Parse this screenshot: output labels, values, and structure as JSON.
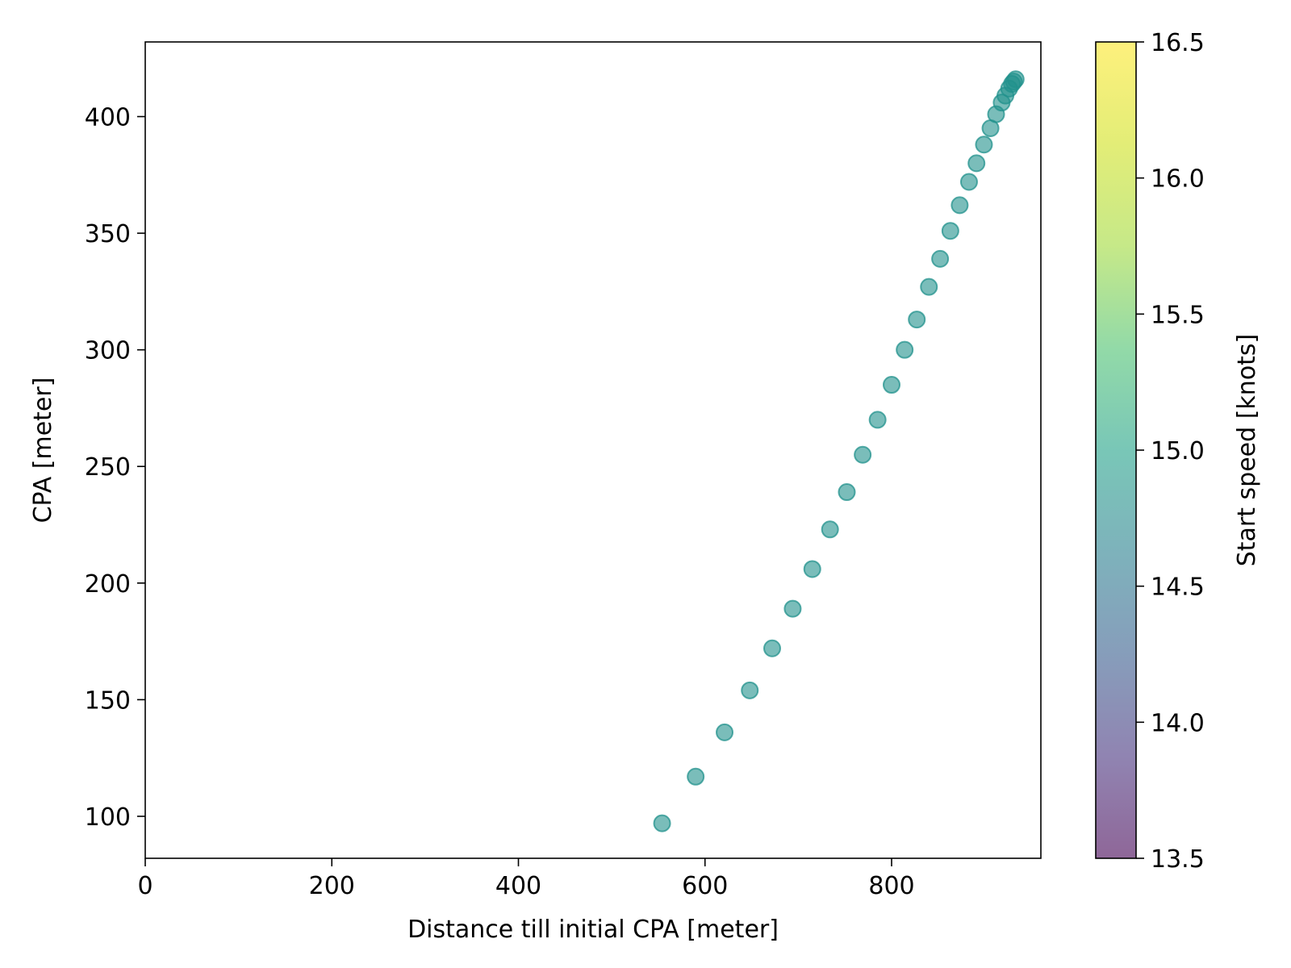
{
  "chart_data": {
    "type": "scatter",
    "xlabel": "Distance till initial CPA [meter]",
    "ylabel": "CPA [meter]",
    "xlim": [
      0,
      960
    ],
    "ylim": [
      82,
      432
    ],
    "x_ticks": [
      0,
      200,
      400,
      600,
      800
    ],
    "y_ticks": [
      100,
      150,
      200,
      250,
      300,
      350,
      400
    ],
    "grid": false,
    "colorbar": {
      "label": "Start speed [knots]",
      "range": [
        13.5,
        16.5
      ],
      "ticks": [
        13.5,
        14.0,
        14.5,
        15.0,
        15.5,
        16.0,
        16.5
      ],
      "tick_labels": [
        "13.5",
        "14.0",
        "14.5",
        "15.0",
        "15.5",
        "16.0",
        "16.5"
      ],
      "colormap": "viridis",
      "alpha": 0.6
    },
    "series": [
      {
        "color": "#21918c",
        "alpha": 0.6,
        "points": [
          {
            "x": 554,
            "y": 97,
            "speed": 15.0
          },
          {
            "x": 590,
            "y": 117,
            "speed": 15.0
          },
          {
            "x": 621,
            "y": 136,
            "speed": 15.0
          },
          {
            "x": 648,
            "y": 154,
            "speed": 15.0
          },
          {
            "x": 672,
            "y": 172,
            "speed": 15.0
          },
          {
            "x": 694,
            "y": 189,
            "speed": 15.0
          },
          {
            "x": 715,
            "y": 206,
            "speed": 15.0
          },
          {
            "x": 734,
            "y": 223,
            "speed": 15.0
          },
          {
            "x": 752,
            "y": 239,
            "speed": 15.0
          },
          {
            "x": 769,
            "y": 255,
            "speed": 15.0
          },
          {
            "x": 785,
            "y": 270,
            "speed": 15.0
          },
          {
            "x": 800,
            "y": 285,
            "speed": 15.0
          },
          {
            "x": 814,
            "y": 300,
            "speed": 15.0
          },
          {
            "x": 827,
            "y": 313,
            "speed": 15.0
          },
          {
            "x": 840,
            "y": 327,
            "speed": 15.0
          },
          {
            "x": 852,
            "y": 339,
            "speed": 15.0
          },
          {
            "x": 863,
            "y": 351,
            "speed": 15.0
          },
          {
            "x": 873,
            "y": 362,
            "speed": 15.0
          },
          {
            "x": 883,
            "y": 372,
            "speed": 15.0
          },
          {
            "x": 891,
            "y": 380,
            "speed": 15.0
          },
          {
            "x": 899,
            "y": 388,
            "speed": 15.0
          },
          {
            "x": 906,
            "y": 395,
            "speed": 15.0
          },
          {
            "x": 912,
            "y": 401,
            "speed": 15.0
          },
          {
            "x": 918,
            "y": 406,
            "speed": 15.0
          },
          {
            "x": 922,
            "y": 409,
            "speed": 15.0
          },
          {
            "x": 926,
            "y": 412,
            "speed": 15.0
          },
          {
            "x": 929,
            "y": 414,
            "speed": 15.0
          },
          {
            "x": 931,
            "y": 415,
            "speed": 15.0
          },
          {
            "x": 933,
            "y": 416,
            "speed": 15.0
          }
        ]
      }
    ]
  }
}
